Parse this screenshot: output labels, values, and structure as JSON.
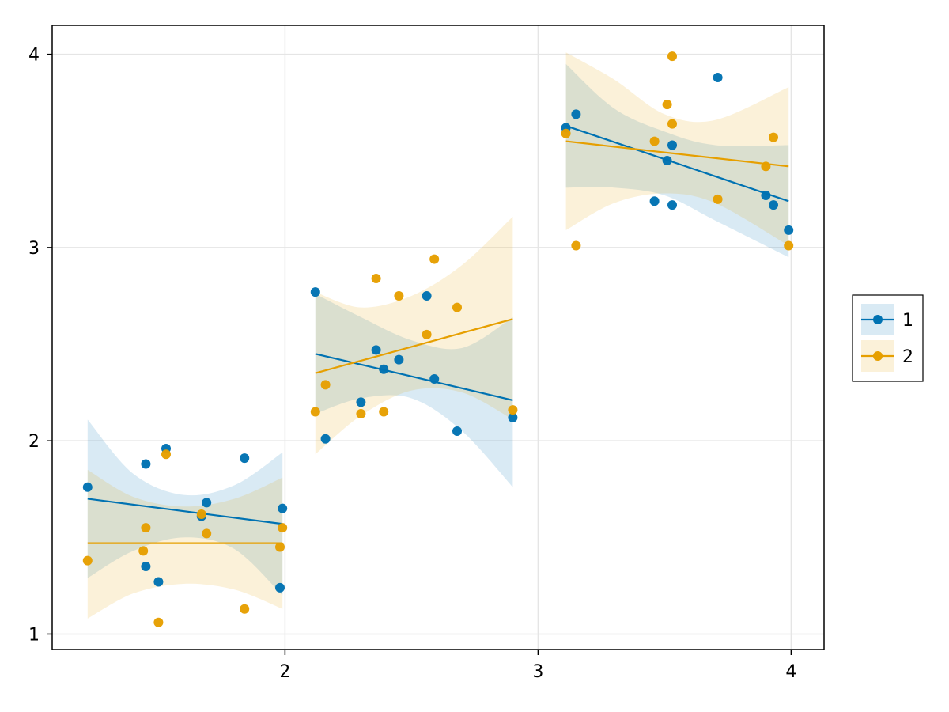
{
  "chart_data": {
    "type": "scatter",
    "title": "",
    "xlabel": "",
    "ylabel": "",
    "xlim": [
      1.08,
      4.13
    ],
    "ylim": [
      0.92,
      4.15
    ],
    "xticks": [
      2,
      3,
      4
    ],
    "yticks": [
      1,
      2,
      3,
      4
    ],
    "grid": true,
    "legend_position": "right",
    "series": [
      {
        "name": "1",
        "color": "#0072B2",
        "points": [
          [
            1.22,
            1.76
          ],
          [
            1.45,
            1.88
          ],
          [
            1.53,
            1.96
          ],
          [
            1.84,
            1.91
          ],
          [
            1.69,
            1.68
          ],
          [
            1.67,
            1.61
          ],
          [
            1.99,
            1.65
          ],
          [
            1.45,
            1.35
          ],
          [
            1.5,
            1.27
          ],
          [
            1.98,
            1.24
          ],
          [
            2.12,
            2.77
          ],
          [
            2.16,
            2.01
          ],
          [
            2.3,
            2.2
          ],
          [
            2.36,
            2.47
          ],
          [
            2.39,
            2.37
          ],
          [
            2.45,
            2.42
          ],
          [
            2.56,
            2.75
          ],
          [
            2.59,
            2.32
          ],
          [
            2.68,
            2.05
          ],
          [
            2.9,
            2.12
          ],
          [
            3.11,
            3.62
          ],
          [
            3.15,
            3.69
          ],
          [
            3.46,
            3.24
          ],
          [
            3.51,
            3.45
          ],
          [
            3.53,
            3.53
          ],
          [
            3.53,
            3.22
          ],
          [
            3.71,
            3.88
          ],
          [
            3.9,
            3.27
          ],
          [
            3.93,
            3.22
          ],
          [
            3.99,
            3.09
          ]
        ],
        "fits": [
          {
            "x": [
              1.22,
              1.99
            ],
            "y": [
              1.7,
              1.57
            ],
            "band_x": [
              1.22,
              1.4,
              1.6,
              1.8,
              1.99
            ],
            "band_lo": [
              1.29,
              1.43,
              1.5,
              1.44,
              1.2
            ],
            "band_hi": [
              2.11,
              1.83,
              1.72,
              1.77,
              1.94
            ]
          },
          {
            "x": [
              2.12,
              2.9
            ],
            "y": [
              2.45,
              2.21
            ],
            "band_x": [
              2.12,
              2.3,
              2.5,
              2.7,
              2.9
            ],
            "band_lo": [
              2.14,
              2.22,
              2.22,
              2.05,
              1.76
            ],
            "band_hi": [
              2.76,
              2.64,
              2.52,
              2.48,
              2.64
            ]
          },
          {
            "x": [
              3.11,
              3.99
            ],
            "y": [
              3.63,
              3.24
            ],
            "band_x": [
              3.11,
              3.3,
              3.5,
              3.7,
              3.99
            ],
            "band_lo": [
              3.31,
              3.31,
              3.27,
              3.14,
              2.95
            ],
            "band_hi": [
              3.95,
              3.72,
              3.6,
              3.53,
              3.53
            ]
          }
        ]
      },
      {
        "name": "2",
        "color": "#E69F00",
        "points": [
          [
            1.22,
            1.38
          ],
          [
            1.45,
            1.55
          ],
          [
            1.44,
            1.43
          ],
          [
            1.53,
            1.93
          ],
          [
            1.67,
            1.62
          ],
          [
            1.69,
            1.52
          ],
          [
            1.99,
            1.55
          ],
          [
            1.98,
            1.45
          ],
          [
            1.5,
            1.06
          ],
          [
            1.84,
            1.13
          ],
          [
            2.12,
            2.15
          ],
          [
            2.16,
            2.29
          ],
          [
            2.3,
            2.14
          ],
          [
            2.36,
            2.84
          ],
          [
            2.39,
            2.15
          ],
          [
            2.45,
            2.75
          ],
          [
            2.56,
            2.55
          ],
          [
            2.59,
            2.94
          ],
          [
            2.68,
            2.69
          ],
          [
            2.9,
            2.16
          ],
          [
            3.11,
            3.59
          ],
          [
            3.15,
            3.01
          ],
          [
            3.46,
            3.55
          ],
          [
            3.51,
            3.74
          ],
          [
            3.53,
            3.64
          ],
          [
            3.53,
            3.99
          ],
          [
            3.71,
            3.25
          ],
          [
            3.9,
            3.42
          ],
          [
            3.93,
            3.57
          ],
          [
            3.99,
            3.01
          ]
        ],
        "fits": [
          {
            "x": [
              1.22,
              1.99
            ],
            "y": [
              1.47,
              1.47
            ],
            "band_x": [
              1.22,
              1.4,
              1.6,
              1.8,
              1.99
            ],
            "band_lo": [
              1.08,
              1.21,
              1.26,
              1.23,
              1.13
            ],
            "band_hi": [
              1.85,
              1.71,
              1.66,
              1.7,
              1.81
            ]
          },
          {
            "x": [
              2.12,
              2.9
            ],
            "y": [
              2.35,
              2.63
            ],
            "band_x": [
              2.12,
              2.3,
              2.5,
              2.7,
              2.9
            ],
            "band_lo": [
              1.93,
              2.13,
              2.26,
              2.25,
              2.11
            ],
            "band_hi": [
              2.77,
              2.69,
              2.75,
              2.91,
              3.16
            ]
          },
          {
            "x": [
              3.11,
              3.99
            ],
            "y": [
              3.55,
              3.42
            ],
            "band_x": [
              3.11,
              3.3,
              3.5,
              3.7,
              3.99
            ],
            "band_lo": [
              3.09,
              3.23,
              3.28,
              3.23,
              3.01
            ],
            "band_hi": [
              4.01,
              3.87,
              3.69,
              3.66,
              3.83
            ]
          }
        ]
      }
    ]
  }
}
